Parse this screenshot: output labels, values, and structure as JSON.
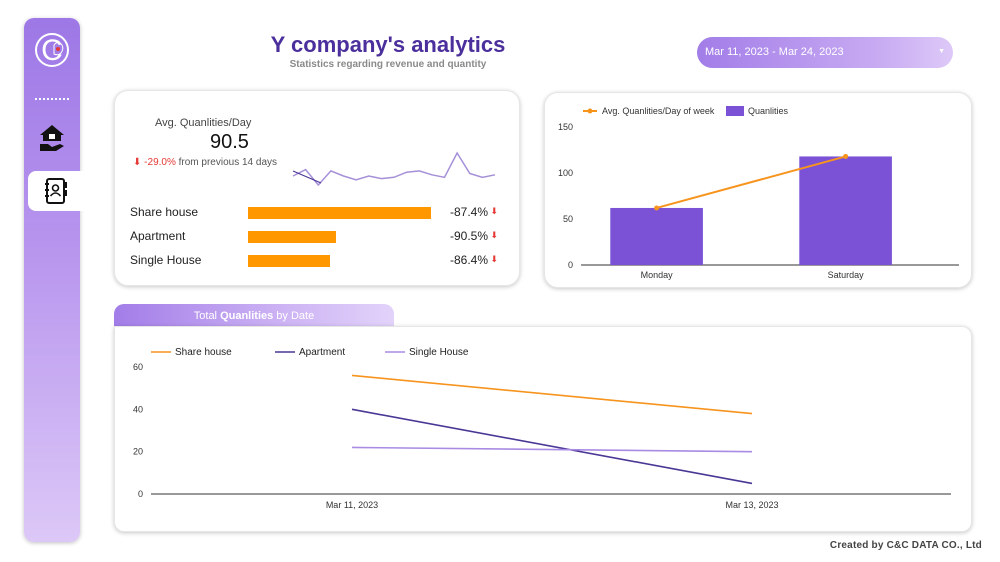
{
  "header": {
    "title": "Y company's analytics",
    "subtitle": "Statistics regarding revenue and quantity"
  },
  "date_range": {
    "value": "Mar 11, 2023 - Mar 24, 2023",
    "caret": "▼"
  },
  "sidebar": {
    "logo_letter": "C",
    "items": [
      {
        "name": "home",
        "icon": "home-hand-icon"
      },
      {
        "name": "report",
        "icon": "address-book-icon",
        "active": true
      }
    ]
  },
  "kpi": {
    "label": "Avg. Quanlities/Day",
    "value": "90.5",
    "change": "-29.0%",
    "change_suffix": "from previous 14 days",
    "change_arrow": "⬇",
    "sparkline": [
      12,
      17,
      5,
      16,
      12,
      9,
      12,
      10,
      11,
      15,
      16,
      13,
      11,
      30,
      14,
      11,
      13
    ],
    "categories": [
      {
        "name": "Share house",
        "pct": "-87.4%",
        "fraction": 1.0
      },
      {
        "name": "Apartment",
        "pct": "-90.5%",
        "fraction": 0.48
      },
      {
        "name": "Single House",
        "pct": "-86.4%",
        "fraction": 0.45
      }
    ],
    "arrow": "⬇"
  },
  "chart_data": [
    {
      "type": "bar",
      "legend": [
        "Avg. Quanlities/Day of week",
        "Quanlities"
      ],
      "categories": [
        "Monday",
        "Saturday"
      ],
      "series": [
        {
          "name": "Quanlities",
          "type": "bar",
          "values": [
            62,
            118
          ],
          "color": "#7b52d6"
        },
        {
          "name": "Avg. Quanlities/Day of week",
          "type": "line",
          "values": [
            62,
            118
          ],
          "color": "#f7941d"
        }
      ],
      "ylim": [
        0,
        150
      ],
      "yticks": [
        0,
        50,
        100,
        150
      ]
    },
    {
      "type": "line",
      "title": "Total Quanlities by Date",
      "x": [
        "Mar 11, 2023",
        "Mar 13, 2023"
      ],
      "series": [
        {
          "name": "Share house",
          "values": [
            56,
            38
          ],
          "color": "#f7941d"
        },
        {
          "name": "Apartment",
          "values": [
            40,
            5
          ],
          "color": "#4a3796"
        },
        {
          "name": "Single House",
          "values": [
            22,
            20
          ],
          "color": "#a98be3"
        }
      ],
      "ylim": [
        0,
        60
      ],
      "yticks": [
        0,
        20,
        40,
        60
      ]
    }
  ],
  "tab": {
    "prefix": "Total ",
    "bold": "Quanlities",
    "suffix": " by Date"
  },
  "footer": "Created by C&C DATA CO., Ltd"
}
